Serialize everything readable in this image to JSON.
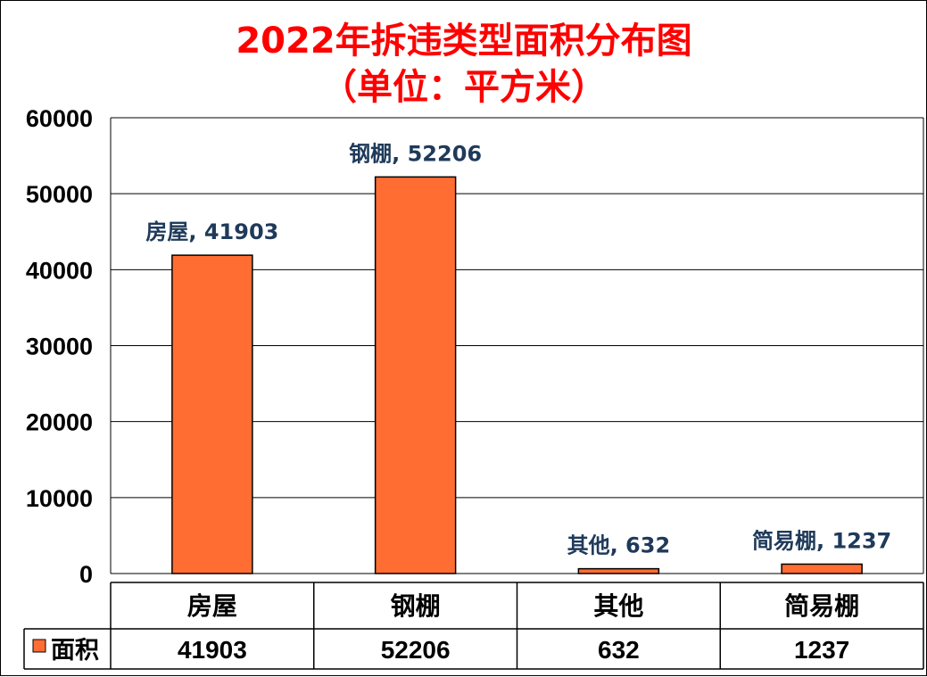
{
  "chart_data": {
    "type": "bar",
    "title_line1": "2022年拆违类型面积分布图",
    "title_line2": "（单位：平方米）",
    "categories": [
      "房屋",
      "钢棚",
      "其他",
      "简易棚"
    ],
    "series": [
      {
        "name": "面积",
        "values": [
          41903,
          52206,
          632,
          1237
        ]
      }
    ],
    "data_labels": [
      "房屋, 41903",
      "钢棚, 52206",
      "其他, 632",
      "简易棚, 1237"
    ],
    "ylim": [
      0,
      60000
    ],
    "yticks": [
      0,
      10000,
      20000,
      30000,
      40000,
      50000,
      60000
    ],
    "grid": true,
    "legend_placement": "data-table",
    "bar_color": "#ff6d33",
    "title_color": "#ff0000",
    "label_color": "#1f3a5a"
  }
}
